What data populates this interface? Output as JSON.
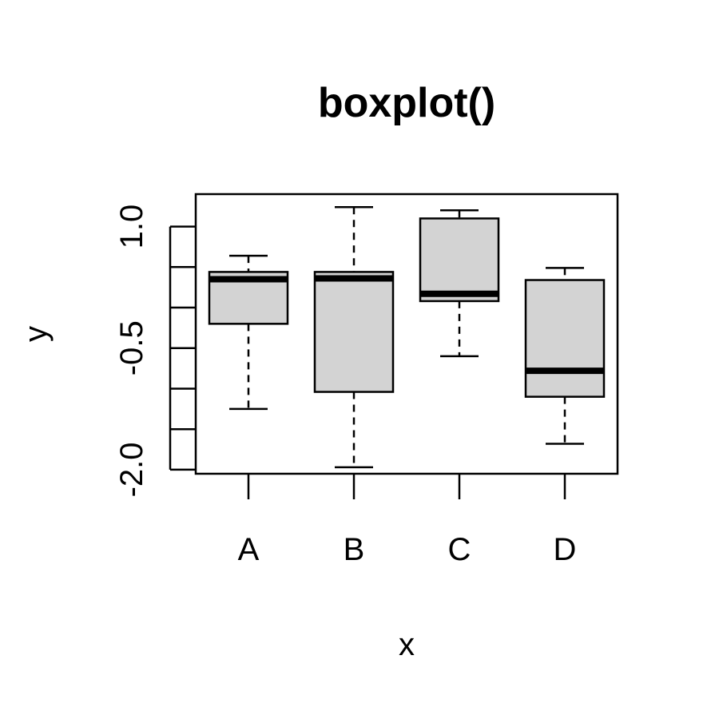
{
  "chart_data": {
    "type": "boxplot",
    "title": "boxplot()",
    "xlabel": "x",
    "ylabel": "y",
    "ylim": [
      -2.05,
      1.4
    ],
    "categories": [
      "A",
      "B",
      "C",
      "D"
    ],
    "yticks": [
      -2.0,
      -1.5,
      -1.0,
      -0.5,
      0.0,
      0.5,
      1.0
    ],
    "yticklabels": [
      "-2.0",
      "",
      "",
      "-0.5",
      "",
      "",
      "1.0"
    ],
    "box_fill": "#d3d3d3",
    "boxes": [
      {
        "category": "A",
        "whisker_low": -1.25,
        "q1": -0.2,
        "median": 0.35,
        "q3": 0.44,
        "whisker_high": 0.64
      },
      {
        "category": "B",
        "whisker_low": -1.97,
        "q1": -1.04,
        "median": 0.36,
        "q3": 0.44,
        "whisker_high": 1.24
      },
      {
        "category": "C",
        "whisker_low": -0.6,
        "q1": 0.08,
        "median": 0.17,
        "q3": 1.1,
        "whisker_high": 1.2
      },
      {
        "category": "D",
        "whisker_low": -1.68,
        "q1": -1.1,
        "median": -0.78,
        "q3": 0.34,
        "whisker_high": 0.49
      }
    ]
  }
}
